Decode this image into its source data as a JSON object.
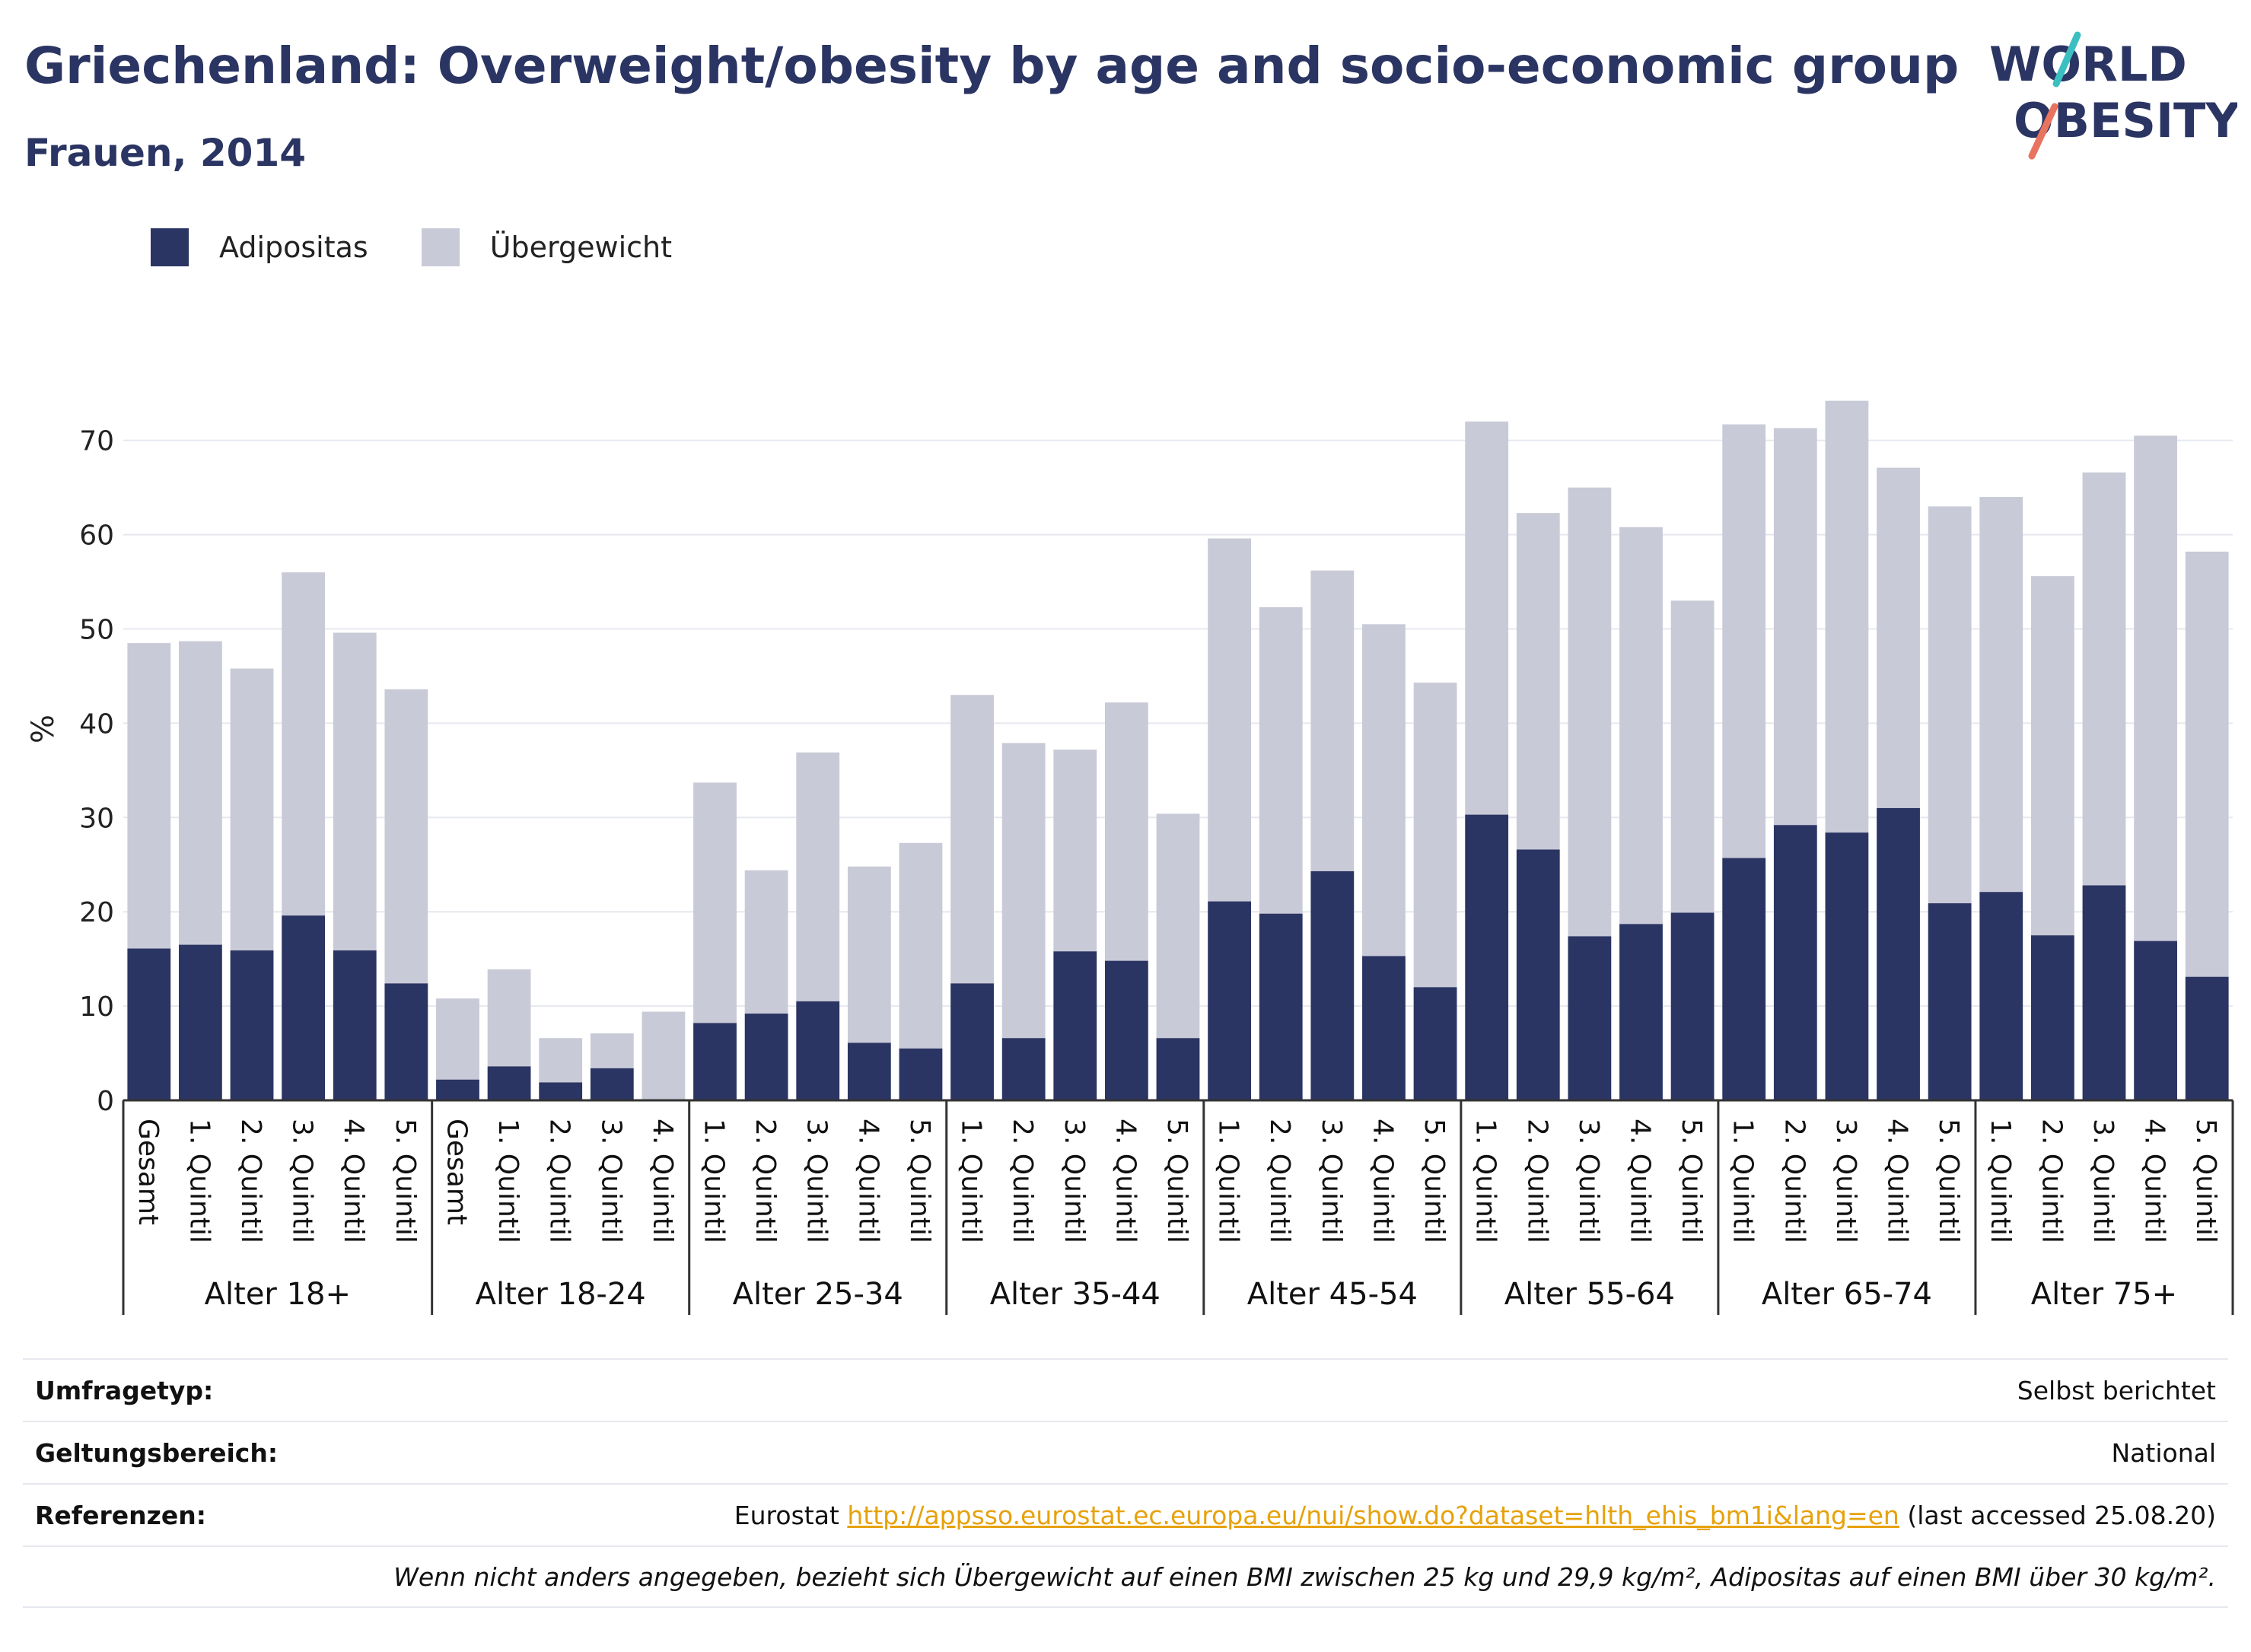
{
  "header": {
    "title": "Griechenland: Overweight/obesity by age and socio-economic group",
    "subtitle": "Frauen, 2014"
  },
  "logo": {
    "line1": "WORLD",
    "line2": "OBESITY"
  },
  "colors": {
    "obesity": "#2b3563",
    "overweight": "#c9cad7",
    "brand": "#2b3563",
    "link": "#e6a20c",
    "logo_teal": "#3bbfc1",
    "logo_coral": "#e8745f"
  },
  "legend": {
    "items": [
      {
        "label": "Adipositas",
        "color": "#2b3563"
      },
      {
        "label": "Übergewicht",
        "color": "#c9cad7"
      }
    ]
  },
  "chart_data": {
    "type": "bar",
    "stacked": true,
    "ylabel": "%",
    "xlabel": "",
    "ylim": [
      0,
      77
    ],
    "yticks": [
      0,
      10,
      20,
      30,
      40,
      50,
      60,
      70
    ],
    "grid": true,
    "legend_position": "top-left",
    "series": [
      {
        "name": "Adipositas"
      },
      {
        "name": "Übergewicht"
      }
    ],
    "groups": [
      {
        "label": "Alter 18+",
        "bars": [
          {
            "category": "Gesamt",
            "adipositas": 16.1,
            "total": 48.5
          },
          {
            "category": "1. Quintil",
            "adipositas": 16.5,
            "total": 48.7
          },
          {
            "category": "2. Quintil",
            "adipositas": 15.9,
            "total": 45.8
          },
          {
            "category": "3. Quintil",
            "adipositas": 19.6,
            "total": 56.0
          },
          {
            "category": "4. Quintil",
            "adipositas": 15.9,
            "total": 49.6
          },
          {
            "category": "5. Quintil",
            "adipositas": 12.4,
            "total": 43.6
          }
        ]
      },
      {
        "label": "Alter 18-24",
        "bars": [
          {
            "category": "Gesamt",
            "adipositas": 2.2,
            "total": 10.8
          },
          {
            "category": "1. Quintil",
            "adipositas": 3.6,
            "total": 13.9
          },
          {
            "category": "2. Quintil",
            "adipositas": 1.9,
            "total": 6.6
          },
          {
            "category": "3. Quintil",
            "adipositas": 3.4,
            "total": 7.1
          },
          {
            "category": "4. Quintil",
            "adipositas": 0,
            "total": 9.4
          }
        ]
      },
      {
        "label": "Alter 25-34",
        "bars": [
          {
            "category": "1. Quintil",
            "adipositas": 8.2,
            "total": 33.7
          },
          {
            "category": "2. Quintil",
            "adipositas": 9.2,
            "total": 24.4
          },
          {
            "category": "3. Quintil",
            "adipositas": 10.5,
            "total": 36.9
          },
          {
            "category": "4. Quintil",
            "adipositas": 6.1,
            "total": 24.8
          },
          {
            "category": "5. Quintil",
            "adipositas": 5.5,
            "total": 27.3
          }
        ]
      },
      {
        "label": "Alter 35-44",
        "bars": [
          {
            "category": "1. Quintil",
            "adipositas": 12.4,
            "total": 43.0
          },
          {
            "category": "2. Quintil",
            "adipositas": 6.6,
            "total": 37.9
          },
          {
            "category": "3. Quintil",
            "adipositas": 15.8,
            "total": 37.2
          },
          {
            "category": "4. Quintil",
            "adipositas": 14.8,
            "total": 42.2
          },
          {
            "category": "5. Quintil",
            "adipositas": 6.6,
            "total": 30.4
          }
        ]
      },
      {
        "label": "Alter 45-54",
        "bars": [
          {
            "category": "1. Quintil",
            "adipositas": 21.1,
            "total": 59.6
          },
          {
            "category": "2. Quintil",
            "adipositas": 19.8,
            "total": 52.3
          },
          {
            "category": "3. Quintil",
            "adipositas": 24.3,
            "total": 56.2
          },
          {
            "category": "4. Quintil",
            "adipositas": 15.3,
            "total": 50.5
          },
          {
            "category": "5. Quintil",
            "adipositas": 12.0,
            "total": 44.3
          }
        ]
      },
      {
        "label": "Alter 55-64",
        "bars": [
          {
            "category": "1. Quintil",
            "adipositas": 30.3,
            "total": 72.0
          },
          {
            "category": "2. Quintil",
            "adipositas": 26.6,
            "total": 62.3
          },
          {
            "category": "3. Quintil",
            "adipositas": 17.4,
            "total": 65.0
          },
          {
            "category": "4. Quintil",
            "adipositas": 18.7,
            "total": 60.8
          },
          {
            "category": "5. Quintil",
            "adipositas": 19.9,
            "total": 53.0
          }
        ]
      },
      {
        "label": "Alter 65-74",
        "bars": [
          {
            "category": "1. Quintil",
            "adipositas": 25.7,
            "total": 71.7
          },
          {
            "category": "2. Quintil",
            "adipositas": 29.2,
            "total": 71.3
          },
          {
            "category": "3. Quintil",
            "adipositas": 28.4,
            "total": 74.2
          },
          {
            "category": "4. Quintil",
            "adipositas": 31.0,
            "total": 67.1
          },
          {
            "category": "5. Quintil",
            "adipositas": 20.9,
            "total": 63.0
          }
        ]
      },
      {
        "label": "Alter 75+",
        "bars": [
          {
            "category": "1. Quintil",
            "adipositas": 22.1,
            "total": 64.0
          },
          {
            "category": "2. Quintil",
            "adipositas": 17.5,
            "total": 55.6
          },
          {
            "category": "3. Quintil",
            "adipositas": 22.8,
            "total": 66.6
          },
          {
            "category": "4. Quintil",
            "adipositas": 16.9,
            "total": 70.5
          },
          {
            "category": "5. Quintil",
            "adipositas": 13.1,
            "total": 58.2
          }
        ]
      }
    ]
  },
  "info": {
    "survey_label": "Umfragetyp:",
    "survey_value": "Selbst berichtet",
    "scope_label": "Geltungsbereich:",
    "scope_value": "National",
    "refs_label": "Referenzen:",
    "refs_prefix": "Eurostat ",
    "refs_link": "http://appsso.eurostat.ec.europa.eu/nui/show.do?dataset=hlth_ehis_bm1i&lang=en",
    "refs_suffix": " (last accessed 25.08.20)",
    "note": "Wenn nicht anders angegeben, bezieht sich Übergewicht auf einen BMI zwischen 25 kg und 29,9 kg/m², Adipositas auf einen BMI über 30 kg/m²."
  }
}
